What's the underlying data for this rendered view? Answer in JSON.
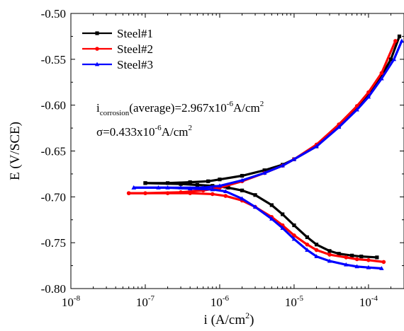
{
  "chart_data": {
    "type": "line",
    "title": "",
    "xlabel": {
      "base": "i (A/cm",
      "sup": "2",
      "end": ")"
    },
    "ylabel": "E (V/SCE)",
    "x_scale": "log",
    "xlim": [
      1e-08,
      0.0003
    ],
    "ylim": [
      -0.8,
      -0.5
    ],
    "x_ticks": [
      {
        "base": "10",
        "exp": "-8",
        "value": 1e-08
      },
      {
        "base": "10",
        "exp": "-7",
        "value": 1e-07
      },
      {
        "base": "10",
        "exp": "-6",
        "value": 1e-06
      },
      {
        "base": "10",
        "exp": "-5",
        "value": 1e-05
      },
      {
        "base": "10",
        "exp": "-4",
        "value": 0.0001
      }
    ],
    "y_ticks": [
      "-0.50",
      "-0.55",
      "-0.60",
      "-0.65",
      "-0.70",
      "-0.75",
      "-0.80"
    ],
    "y_tick_values": [
      -0.5,
      -0.55,
      -0.6,
      -0.65,
      -0.7,
      -0.75,
      -0.8
    ],
    "legend_position": "top-left",
    "annotations": {
      "line1": {
        "a": "i",
        "sub": "corrosion",
        "b": "(average)=2.967x10",
        "sup": "-6",
        "c": "A/cm",
        "sup2": "2"
      },
      "line2": {
        "a": "σ=0.433x10",
        "sup": "-6",
        "b": "A/cm",
        "sup2": "2"
      }
    },
    "series": [
      {
        "name": "Steel#1",
        "color": "#000000",
        "marker": "square",
        "cathodic": [
          [
            0.00013,
            -0.766
          ],
          [
            8e-05,
            -0.765
          ],
          [
            6e-05,
            -0.764
          ],
          [
            4e-05,
            -0.762
          ],
          [
            3e-05,
            -0.759
          ],
          [
            2e-05,
            -0.752
          ],
          [
            1.5e-05,
            -0.744
          ],
          [
            1e-05,
            -0.731
          ],
          [
            7e-06,
            -0.719
          ],
          [
            5e-06,
            -0.709
          ],
          [
            3e-06,
            -0.698
          ],
          [
            2e-06,
            -0.693
          ],
          [
            1.3e-06,
            -0.69
          ],
          [
            8e-07,
            -0.688
          ],
          [
            5e-07,
            -0.687
          ],
          [
            3e-07,
            -0.686
          ],
          [
            1e-07,
            -0.685
          ]
        ],
        "anodic": [
          [
            1e-07,
            -0.685
          ],
          [
            2e-07,
            -0.685
          ],
          [
            4e-07,
            -0.684
          ],
          [
            7e-07,
            -0.683
          ],
          [
            1e-06,
            -0.681
          ],
          [
            2e-06,
            -0.677
          ],
          [
            4e-06,
            -0.671
          ],
          [
            7e-06,
            -0.665
          ],
          [
            1e-05,
            -0.659
          ],
          [
            2e-05,
            -0.645
          ],
          [
            4e-05,
            -0.623
          ],
          [
            7e-05,
            -0.602
          ],
          [
            0.0001,
            -0.589
          ],
          [
            0.00015,
            -0.568
          ],
          [
            0.0002,
            -0.55
          ],
          [
            0.00026,
            -0.525
          ]
        ]
      },
      {
        "name": "Steel#2",
        "color": "#ff0000",
        "marker": "circle",
        "cathodic": [
          [
            0.00016,
            -0.771
          ],
          [
            0.0001,
            -0.769
          ],
          [
            7e-05,
            -0.768
          ],
          [
            5e-05,
            -0.766
          ],
          [
            3e-05,
            -0.763
          ],
          [
            2e-05,
            -0.758
          ],
          [
            1.5e-05,
            -0.752
          ],
          [
            1e-05,
            -0.742
          ],
          [
            7e-06,
            -0.731
          ],
          [
            5e-06,
            -0.722
          ],
          [
            3e-06,
            -0.711
          ],
          [
            2e-06,
            -0.704
          ],
          [
            1.2e-06,
            -0.699
          ],
          [
            8e-07,
            -0.697
          ],
          [
            4e-07,
            -0.696
          ],
          [
            2e-07,
            -0.696
          ],
          [
            6e-08,
            -0.696
          ]
        ],
        "anodic": [
          [
            6e-08,
            -0.696
          ],
          [
            1e-07,
            -0.696
          ],
          [
            3e-07,
            -0.695
          ],
          [
            6e-07,
            -0.693
          ],
          [
            1e-06,
            -0.69
          ],
          [
            2e-06,
            -0.683
          ],
          [
            4e-06,
            -0.674
          ],
          [
            7e-06,
            -0.666
          ],
          [
            1e-05,
            -0.659
          ],
          [
            2e-05,
            -0.643
          ],
          [
            4e-05,
            -0.621
          ],
          [
            7e-05,
            -0.601
          ],
          [
            0.0001,
            -0.586
          ],
          [
            0.00015,
            -0.565
          ],
          [
            0.00023,
            -0.53
          ]
        ]
      },
      {
        "name": "Steel#3",
        "color": "#0000ff",
        "marker": "triangle",
        "cathodic": [
          [
            0.00015,
            -0.778
          ],
          [
            0.0001,
            -0.777
          ],
          [
            7e-05,
            -0.776
          ],
          [
            5e-05,
            -0.774
          ],
          [
            3e-05,
            -0.77
          ],
          [
            2e-05,
            -0.765
          ],
          [
            1.5e-05,
            -0.758
          ],
          [
            1e-05,
            -0.746
          ],
          [
            7e-06,
            -0.734
          ],
          [
            5e-06,
            -0.724
          ],
          [
            3e-06,
            -0.711
          ],
          [
            2e-06,
            -0.702
          ],
          [
            1.2e-06,
            -0.694
          ],
          [
            8e-07,
            -0.692
          ],
          [
            4e-07,
            -0.691
          ],
          [
            2e-07,
            -0.69
          ],
          [
            7e-08,
            -0.69
          ]
        ],
        "anodic": [
          [
            7e-08,
            -0.69
          ],
          [
            1.5e-07,
            -0.69
          ],
          [
            3e-07,
            -0.69
          ],
          [
            6e-07,
            -0.69
          ],
          [
            1e-06,
            -0.688
          ],
          [
            2e-06,
            -0.682
          ],
          [
            4e-06,
            -0.674
          ],
          [
            7e-06,
            -0.666
          ],
          [
            1e-05,
            -0.659
          ],
          [
            2e-05,
            -0.645
          ],
          [
            4e-05,
            -0.624
          ],
          [
            7e-05,
            -0.605
          ],
          [
            0.0001,
            -0.591
          ],
          [
            0.00015,
            -0.571
          ],
          [
            0.00022,
            -0.55
          ],
          [
            0.00028,
            -0.53
          ]
        ]
      }
    ]
  }
}
